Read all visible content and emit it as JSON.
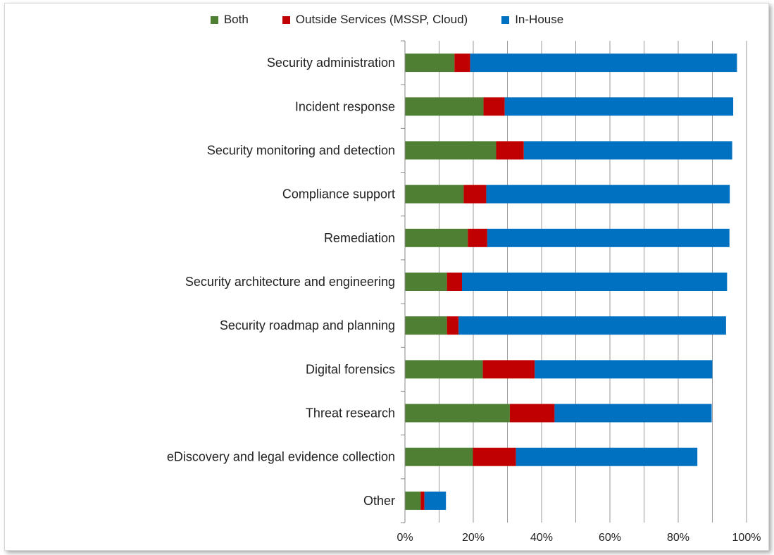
{
  "chart_data": {
    "type": "bar",
    "orientation": "horizontal",
    "stacked": true,
    "categories": [
      "Security administration",
      "Incident response",
      "Security monitoring and detection",
      "Compliance support",
      "Remediation",
      "Security architecture and engineering",
      "Security roadmap and planning",
      "Digital forensics",
      "Threat research",
      "eDiscovery and legal evidence collection",
      "Other"
    ],
    "series": [
      {
        "name": "Both",
        "color": "#4f7f33",
        "values": [
          14.5,
          23.0,
          26.7,
          17.2,
          18.4,
          12.3,
          12.3,
          22.8,
          30.7,
          19.9,
          4.6
        ]
      },
      {
        "name": "Outside Services (MSSP, Cloud)",
        "color": "#c00000",
        "values": [
          4.6,
          6.2,
          8.1,
          6.6,
          5.7,
          4.4,
          3.4,
          15.2,
          13.1,
          12.6,
          1.1
        ]
      },
      {
        "name": "In-House",
        "color": "#0070c0",
        "values": [
          78.1,
          66.9,
          61.0,
          71.3,
          70.9,
          77.6,
          78.3,
          52.0,
          46.0,
          53.1,
          6.3
        ]
      }
    ],
    "xlim": [
      0,
      100
    ],
    "x_ticks": [
      "0%",
      "20%",
      "40%",
      "60%",
      "80%",
      "100%"
    ],
    "grid": true,
    "legend_position": "top"
  }
}
